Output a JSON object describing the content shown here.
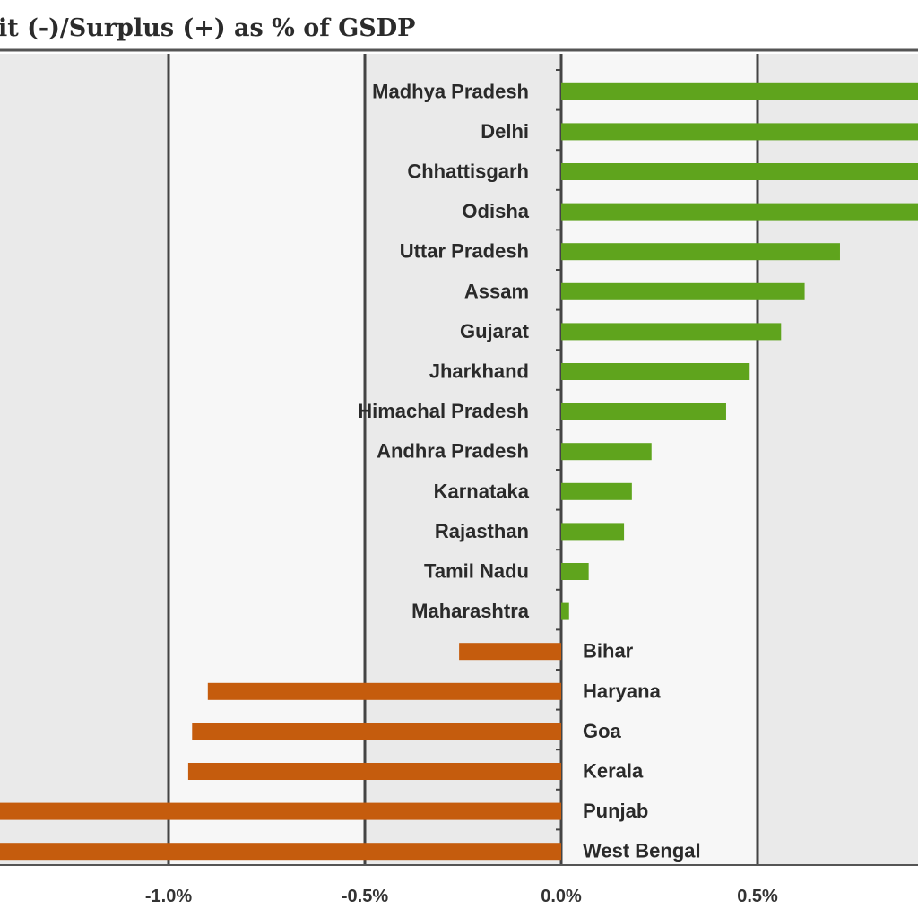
{
  "chart_data": {
    "type": "bar",
    "orientation": "horizontal",
    "title": "Deficit (-)/Surplus (+) as % of GSDP",
    "title_visible": "it (-)/Surplus (+) as % of GSDP",
    "xlim": [
      -1.43,
      0.92
    ],
    "ticks": [
      -1.0,
      -0.5,
      0.0,
      0.5
    ],
    "tick_labels": [
      "-1.0%",
      "-0.5%",
      "0.0%",
      "0.5%"
    ],
    "grid": true,
    "colors": {
      "positive": "#5fa41d",
      "negative": "#c55c0d",
      "band_light": "#eaeaea",
      "grid": "#444444"
    },
    "categories": [
      "Madhya Pradesh",
      "Delhi",
      "Chhattisgarh",
      "Odisha",
      "Uttar Pradesh",
      "Assam",
      "Gujarat",
      "Jharkhand",
      "Himachal Pradesh",
      "Andhra Pradesh",
      "Karnataka",
      "Rajasthan",
      "Tamil Nadu",
      "Maharashtra",
      "Bihar",
      "Haryana",
      "Goa",
      "Kerala",
      "Punjab",
      "West Bengal"
    ],
    "values": [
      0.95,
      0.95,
      0.95,
      0.95,
      0.71,
      0.62,
      0.56,
      0.48,
      0.42,
      0.23,
      0.18,
      0.16,
      0.07,
      0.02,
      -0.26,
      -0.9,
      -0.94,
      -0.95,
      -1.5,
      -1.5
    ]
  }
}
